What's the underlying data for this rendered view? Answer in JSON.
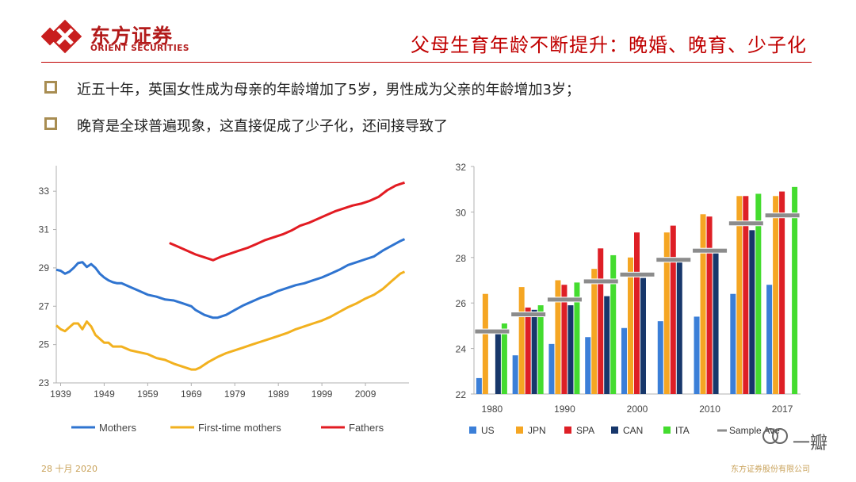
{
  "header": {
    "logo_cn": "东方证券",
    "logo_en": "ORIENT SECURITIES",
    "title": "父母生育年龄不断提升：晚婚、晚育、少子化"
  },
  "bullets": [
    "近五十年，英国女性成为母亲的年龄增加了5岁，男性成为父亲的年龄增加3岁；",
    "晚育是全球普遍现象，这直接促成了少子化，还间接导致了"
  ],
  "footer": {
    "date": "28 十月 2020",
    "company": "东方证券股份有限公司"
  },
  "watermark": "一瓣",
  "chart_data": [
    {
      "type": "line",
      "title": "",
      "xlabel": "",
      "ylabel": "",
      "xlim": [
        1938,
        2019
      ],
      "ylim": [
        23,
        34
      ],
      "yticks": [
        23,
        25,
        27,
        29,
        31,
        33
      ],
      "xticks": [
        "1939",
        "1949",
        "1959",
        "1969",
        "1979",
        "1989",
        "1999",
        "2009"
      ],
      "colors": {
        "Mothers": "#2f74d0",
        "First-time mothers": "#f2b11f",
        "Fathers": "#e21b22"
      },
      "series": [
        {
          "name": "Mothers",
          "x": [
            1938,
            1939,
            1940,
            1941,
            1942,
            1943,
            1944,
            1945,
            1946,
            1947,
            1948,
            1949,
            1950,
            1951,
            1952,
            1953,
            1955,
            1957,
            1959,
            1961,
            1963,
            1965,
            1967,
            1969,
            1970,
            1972,
            1974,
            1975,
            1977,
            1979,
            1981,
            1983,
            1985,
            1987,
            1989,
            1991,
            1993,
            1995,
            1997,
            1999,
            2001,
            2003,
            2005,
            2007,
            2009,
            2011,
            2013,
            2015,
            2017,
            2018
          ],
          "y": [
            28.9,
            28.85,
            28.7,
            28.8,
            29.0,
            29.25,
            29.3,
            29.05,
            29.2,
            29.0,
            28.7,
            28.5,
            28.35,
            28.25,
            28.2,
            28.2,
            28.0,
            27.8,
            27.6,
            27.5,
            27.35,
            27.3,
            27.15,
            27.0,
            26.8,
            26.55,
            26.4,
            26.4,
            26.55,
            26.8,
            27.05,
            27.25,
            27.45,
            27.6,
            27.8,
            27.95,
            28.1,
            28.2,
            28.35,
            28.5,
            28.7,
            28.9,
            29.15,
            29.3,
            29.45,
            29.6,
            29.9,
            30.15,
            30.4,
            30.5
          ]
        },
        {
          "name": "First-time mothers",
          "x": [
            1938,
            1939,
            1940,
            1941,
            1942,
            1943,
            1944,
            1945,
            1946,
            1947,
            1948,
            1949,
            1950,
            1951,
            1953,
            1955,
            1957,
            1959,
            1961,
            1963,
            1965,
            1967,
            1969,
            1970,
            1971,
            1973,
            1975,
            1977,
            1979,
            1981,
            1983,
            1985,
            1987,
            1989,
            1991,
            1993,
            1995,
            1997,
            1999,
            2001,
            2003,
            2005,
            2007,
            2009,
            2011,
            2013,
            2015,
            2017,
            2018
          ],
          "y": [
            26.0,
            25.8,
            25.7,
            25.9,
            26.1,
            26.1,
            25.8,
            26.2,
            25.95,
            25.5,
            25.3,
            25.1,
            25.1,
            24.9,
            24.9,
            24.7,
            24.6,
            24.5,
            24.3,
            24.2,
            24.0,
            23.85,
            23.7,
            23.7,
            23.8,
            24.1,
            24.35,
            24.55,
            24.7,
            24.85,
            25.0,
            25.15,
            25.3,
            25.45,
            25.6,
            25.8,
            25.95,
            26.1,
            26.25,
            26.45,
            26.7,
            26.95,
            27.15,
            27.4,
            27.6,
            27.9,
            28.3,
            28.7,
            28.8
          ]
        },
        {
          "name": "Fathers",
          "x": [
            1964,
            1966,
            1968,
            1970,
            1972,
            1974,
            1976,
            1978,
            1980,
            1982,
            1984,
            1986,
            1988,
            1990,
            1992,
            1994,
            1996,
            1998,
            2000,
            2002,
            2004,
            2006,
            2008,
            2010,
            2012,
            2014,
            2016,
            2018
          ],
          "y": [
            30.3,
            30.1,
            29.9,
            29.7,
            29.55,
            29.4,
            29.6,
            29.75,
            29.9,
            30.05,
            30.25,
            30.45,
            30.6,
            30.75,
            30.95,
            31.2,
            31.35,
            31.55,
            31.75,
            31.95,
            32.1,
            32.25,
            32.35,
            32.5,
            32.7,
            33.05,
            33.3,
            33.45
          ]
        }
      ],
      "legend": [
        "Mothers",
        "First-time mothers",
        "Fathers"
      ]
    },
    {
      "type": "bar",
      "title": "",
      "xlabel": "",
      "ylabel": "",
      "ylim": [
        22,
        32
      ],
      "yticks": [
        22,
        24,
        26,
        28,
        30,
        32
      ],
      "categories": [
        "1980",
        "1985",
        "1990",
        "1995",
        "2000",
        "2005",
        "2010",
        "2015",
        "2017"
      ],
      "category_labels": [
        "1980",
        "",
        "1990",
        "",
        "2000",
        "",
        "2010",
        "",
        "2017"
      ],
      "colors": {
        "US": "#3b7fd8",
        "JPN": "#f5a623",
        "SPA": "#de1f26",
        "CAN": "#17376b",
        "ITA": "#44dc2f",
        "Sample Ave": "#8c8c8c"
      },
      "series": [
        {
          "name": "US",
          "values": [
            22.7,
            23.7,
            24.2,
            24.5,
            24.9,
            25.2,
            25.4,
            26.4,
            26.8
          ]
        },
        {
          "name": "JPN",
          "values": [
            26.4,
            26.7,
            27.0,
            27.5,
            28.0,
            29.1,
            29.9,
            30.7,
            30.7
          ]
        },
        {
          "name": "SPA",
          "values": [
            null,
            25.8,
            26.8,
            28.4,
            29.1,
            29.4,
            29.8,
            30.7,
            30.9
          ]
        },
        {
          "name": "CAN",
          "values": [
            24.8,
            25.7,
            25.9,
            26.3,
            27.1,
            27.9,
            28.4,
            29.2,
            null
          ]
        },
        {
          "name": "ITA",
          "values": [
            25.1,
            25.9,
            26.9,
            28.1,
            null,
            null,
            null,
            30.8,
            31.1
          ]
        }
      ],
      "average": {
        "name": "Sample Ave",
        "values": [
          24.75,
          25.5,
          26.15,
          26.95,
          27.25,
          27.9,
          28.3,
          29.5,
          29.85
        ]
      },
      "legend": [
        "US",
        "JPN",
        "SPA",
        "CAN",
        "ITA",
        "Sample Ave"
      ]
    }
  ]
}
